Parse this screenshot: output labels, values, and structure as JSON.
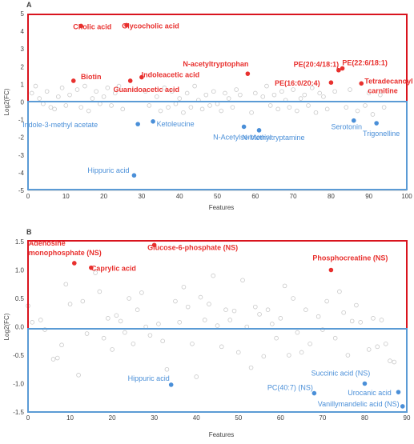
{
  "colors": {
    "up": "#e8302e",
    "down": "#4a8fd8",
    "bg_point": "#c8c8c8",
    "up_box": "#d9141e",
    "down_box": "#5b9bd5"
  },
  "chart_data": [
    {
      "type": "scatter",
      "panel_label": "A",
      "xlabel": "Features",
      "ylabel": "Log2(FC)",
      "xlim": [
        0,
        100
      ],
      "ylim": [
        -5,
        5
      ],
      "xticks": [
        0,
        10,
        20,
        30,
        40,
        50,
        60,
        70,
        80,
        90,
        100
      ],
      "yticks": [
        -5,
        -4,
        -3,
        -2,
        -1,
        0,
        1,
        2,
        3,
        4,
        5
      ],
      "grid": false,
      "highlighted": [
        {
          "label": "Cholic acid",
          "x": 14,
          "y": 4.3,
          "group": "up"
        },
        {
          "label": "Glycocholic acid",
          "x": 26,
          "y": 4.35,
          "group": "up"
        },
        {
          "label": "Biotin",
          "x": 12,
          "y": 1.2,
          "group": "up"
        },
        {
          "label": "Guanidoacetic acid",
          "x": 27,
          "y": 1.2,
          "group": "up"
        },
        {
          "label": "Indoleacetic acid",
          "x": 30,
          "y": 1.4,
          "group": "up"
        },
        {
          "label": "N-acetyltryptophan",
          "x": 58,
          "y": 1.6,
          "group": "up"
        },
        {
          "label": "PE(16:0/20:4)",
          "x": 80,
          "y": 1.1,
          "group": "up"
        },
        {
          "label": "PE(20:4/18:1)",
          "x": 82,
          "y": 1.8,
          "group": "up"
        },
        {
          "label": "PE(22:6/18:1)",
          "x": 83,
          "y": 1.9,
          "group": "up"
        },
        {
          "label": "Tetradecanoyl carnitine",
          "x": 88,
          "y": 1.05,
          "group": "up"
        },
        {
          "label": "Indole-3-methyl acetate",
          "x": 29,
          "y": -1.25,
          "group": "down"
        },
        {
          "label": "Ketoleucine",
          "x": 33,
          "y": -1.1,
          "group": "down"
        },
        {
          "label": "N-Acetylserotonin",
          "x": 57,
          "y": -1.4,
          "group": "down"
        },
        {
          "label": "N-Methyltryptamine",
          "x": 61,
          "y": -1.6,
          "group": "down"
        },
        {
          "label": "Serotonin",
          "x": 86,
          "y": -1.05,
          "group": "down"
        },
        {
          "label": "Trigonelline",
          "x": 92,
          "y": -1.2,
          "group": "down"
        },
        {
          "label": "Hippuric acid",
          "x": 28,
          "y": -4.15,
          "group": "down"
        }
      ],
      "background_points": [
        [
          1,
          0.5
        ],
        [
          2,
          0.9
        ],
        [
          3,
          0.2
        ],
        [
          4,
          -0.1
        ],
        [
          5,
          0.6
        ],
        [
          6,
          -0.3
        ],
        [
          7,
          -0.4
        ],
        [
          8,
          0.3
        ],
        [
          9,
          0.8
        ],
        [
          10,
          -0.2
        ],
        [
          11,
          0.4
        ],
        [
          13,
          0.7
        ],
        [
          14,
          -0.3
        ],
        [
          15,
          0.9
        ],
        [
          16,
          -0.5
        ],
        [
          17,
          0.2
        ],
        [
          18,
          0.6
        ],
        [
          19,
          -0.1
        ],
        [
          20,
          0.3
        ],
        [
          21,
          0.8
        ],
        [
          22,
          -0.2
        ],
        [
          23,
          0.5
        ],
        [
          24,
          0.9
        ],
        [
          25,
          -0.4
        ],
        [
          31,
          0.6
        ],
        [
          32,
          -0.2
        ],
        [
          34,
          0.3
        ],
        [
          35,
          -0.5
        ],
        [
          36,
          0.8
        ],
        [
          37,
          -0.3
        ],
        [
          38,
          0.6
        ],
        [
          39,
          -0.1
        ],
        [
          40,
          0.2
        ],
        [
          41,
          -0.6
        ],
        [
          42,
          0.5
        ],
        [
          43,
          -0.3
        ],
        [
          44,
          0.9
        ],
        [
          45,
          0.1
        ],
        [
          46,
          -0.4
        ],
        [
          47,
          0.4
        ],
        [
          48,
          -0.2
        ],
        [
          49,
          0.6
        ],
        [
          50,
          -0.1
        ],
        [
          51,
          -0.5
        ],
        [
          52,
          0.5
        ],
        [
          53,
          0.2
        ],
        [
          54,
          -0.3
        ],
        [
          55,
          0.7
        ],
        [
          56,
          0.4
        ],
        [
          59,
          -0.6
        ],
        [
          60,
          0.5
        ],
        [
          62,
          0.3
        ],
        [
          63,
          0.9
        ],
        [
          64,
          -0.2
        ],
        [
          65,
          0.4
        ],
        [
          66,
          -0.4
        ],
        [
          67,
          0.6
        ],
        [
          68,
          0.1
        ],
        [
          69,
          -0.3
        ],
        [
          70,
          0.7
        ],
        [
          71,
          -0.5
        ],
        [
          72,
          0.2
        ],
        [
          73,
          0.4
        ],
        [
          74,
          -0.2
        ],
        [
          75,
          0.8
        ],
        [
          76,
          -0.6
        ],
        [
          77,
          0.5
        ],
        [
          78,
          0.3
        ],
        [
          79,
          -0.4
        ],
        [
          81,
          0.6
        ],
        [
          84,
          -0.3
        ],
        [
          85,
          0.7
        ],
        [
          87,
          -0.5
        ],
        [
          89,
          -0.2
        ],
        [
          90,
          0.5
        ],
        [
          91,
          -0.7
        ],
        [
          93,
          0.4
        ],
        [
          94,
          -0.3
        ]
      ]
    },
    {
      "type": "scatter",
      "panel_label": "B",
      "xlabel": "Features",
      "ylabel": "Log2(FC)",
      "xlim": [
        0,
        90
      ],
      "ylim": [
        -1.5,
        1.5
      ],
      "xticks": [
        0,
        10,
        20,
        30,
        40,
        50,
        60,
        70,
        80,
        90
      ],
      "yticks": [
        -1.5,
        -1.0,
        -0.5,
        0.0,
        0.5,
        1.0,
        1.5
      ],
      "ytick_labels": [
        "-1.5",
        "-1.0",
        "-0.5",
        "0.0",
        "0.5",
        "1.0",
        "1.5"
      ],
      "grid": false,
      "highlighted": [
        {
          "label": "Adenosine monophosphate (NS)",
          "x": 11,
          "y": 1.12,
          "group": "up"
        },
        {
          "label": "Caprylic acid",
          "x": 15,
          "y": 1.04,
          "group": "up"
        },
        {
          "label": "Glucose-6-phosphate (NS)",
          "x": 30,
          "y": 1.44,
          "group": "up"
        },
        {
          "label": "Phosphocreatine (NS)",
          "x": 72,
          "y": 1.0,
          "group": "up"
        },
        {
          "label": "Hippuric acid",
          "x": 34,
          "y": -1.02,
          "group": "down"
        },
        {
          "label": "PC(40:7) (NS)",
          "x": 68,
          "y": -1.17,
          "group": "down"
        },
        {
          "label": "Succinic acid (NS)",
          "x": 80,
          "y": -1.0,
          "group": "down"
        },
        {
          "label": "Urocanic acid",
          "x": 88,
          "y": -1.15,
          "group": "down"
        },
        {
          "label": "Vanillymandelic acid (NS)",
          "x": 89,
          "y": -1.4,
          "group": "down"
        }
      ],
      "background_points": [
        [
          0,
          0.37
        ],
        [
          1,
          0.08
        ],
        [
          3,
          0.12
        ],
        [
          4,
          -0.05
        ],
        [
          6,
          -0.57
        ],
        [
          7,
          -0.55
        ],
        [
          8,
          -0.32
        ],
        [
          9,
          0.75
        ],
        [
          10,
          0.4
        ],
        [
          12,
          -0.85
        ],
        [
          13,
          0.45
        ],
        [
          14,
          -0.12
        ],
        [
          16,
          0.95
        ],
        [
          17,
          0.62
        ],
        [
          18,
          -0.2
        ],
        [
          19,
          0.15
        ],
        [
          20,
          -0.4
        ],
        [
          21,
          0.2
        ],
        [
          22,
          0.1
        ],
        [
          23,
          -0.1
        ],
        [
          24,
          0.5
        ],
        [
          25,
          -0.3
        ],
        [
          26,
          0.3
        ],
        [
          27,
          0.6
        ],
        [
          28,
          0.0
        ],
        [
          29,
          -0.15
        ],
        [
          31,
          0.05
        ],
        [
          32,
          -0.25
        ],
        [
          33,
          -0.75
        ],
        [
          35,
          0.45
        ],
        [
          36,
          0.08
        ],
        [
          37,
          0.7
        ],
        [
          38,
          0.35
        ],
        [
          39,
          -0.3
        ],
        [
          40,
          -0.88
        ],
        [
          41,
          0.52
        ],
        [
          42,
          0.12
        ],
        [
          43,
          0.4
        ],
        [
          44,
          0.9
        ],
        [
          45,
          0.02
        ],
        [
          46,
          -0.35
        ],
        [
          47,
          0.3
        ],
        [
          48,
          0.12
        ],
        [
          49,
          0.28
        ],
        [
          50,
          -0.45
        ],
        [
          51,
          0.82
        ],
        [
          52,
          0.0
        ],
        [
          53,
          -0.72
        ],
        [
          54,
          0.35
        ],
        [
          55,
          0.22
        ],
        [
          56,
          -0.52
        ],
        [
          57,
          0.3
        ],
        [
          58,
          0.05
        ],
        [
          59,
          -0.2
        ],
        [
          60,
          0.15
        ],
        [
          61,
          0.72
        ],
        [
          62,
          -0.5
        ],
        [
          63,
          0.5
        ],
        [
          64,
          -0.1
        ],
        [
          65,
          -0.45
        ],
        [
          66,
          0.3
        ],
        [
          67,
          -0.3
        ],
        [
          69,
          0.18
        ],
        [
          70,
          -0.05
        ],
        [
          71,
          0.45
        ],
        [
          73,
          -0.2
        ],
        [
          74,
          0.62
        ],
        [
          75,
          0.25
        ],
        [
          76,
          -0.5
        ],
        [
          77,
          0.1
        ],
        [
          78,
          0.38
        ],
        [
          79,
          0.08
        ],
        [
          81,
          -0.4
        ],
        [
          82,
          0.15
        ],
        [
          83,
          -0.35
        ],
        [
          84,
          0.12
        ],
        [
          85,
          -0.3
        ],
        [
          86,
          -0.6
        ],
        [
          87,
          -0.62
        ]
      ]
    }
  ]
}
